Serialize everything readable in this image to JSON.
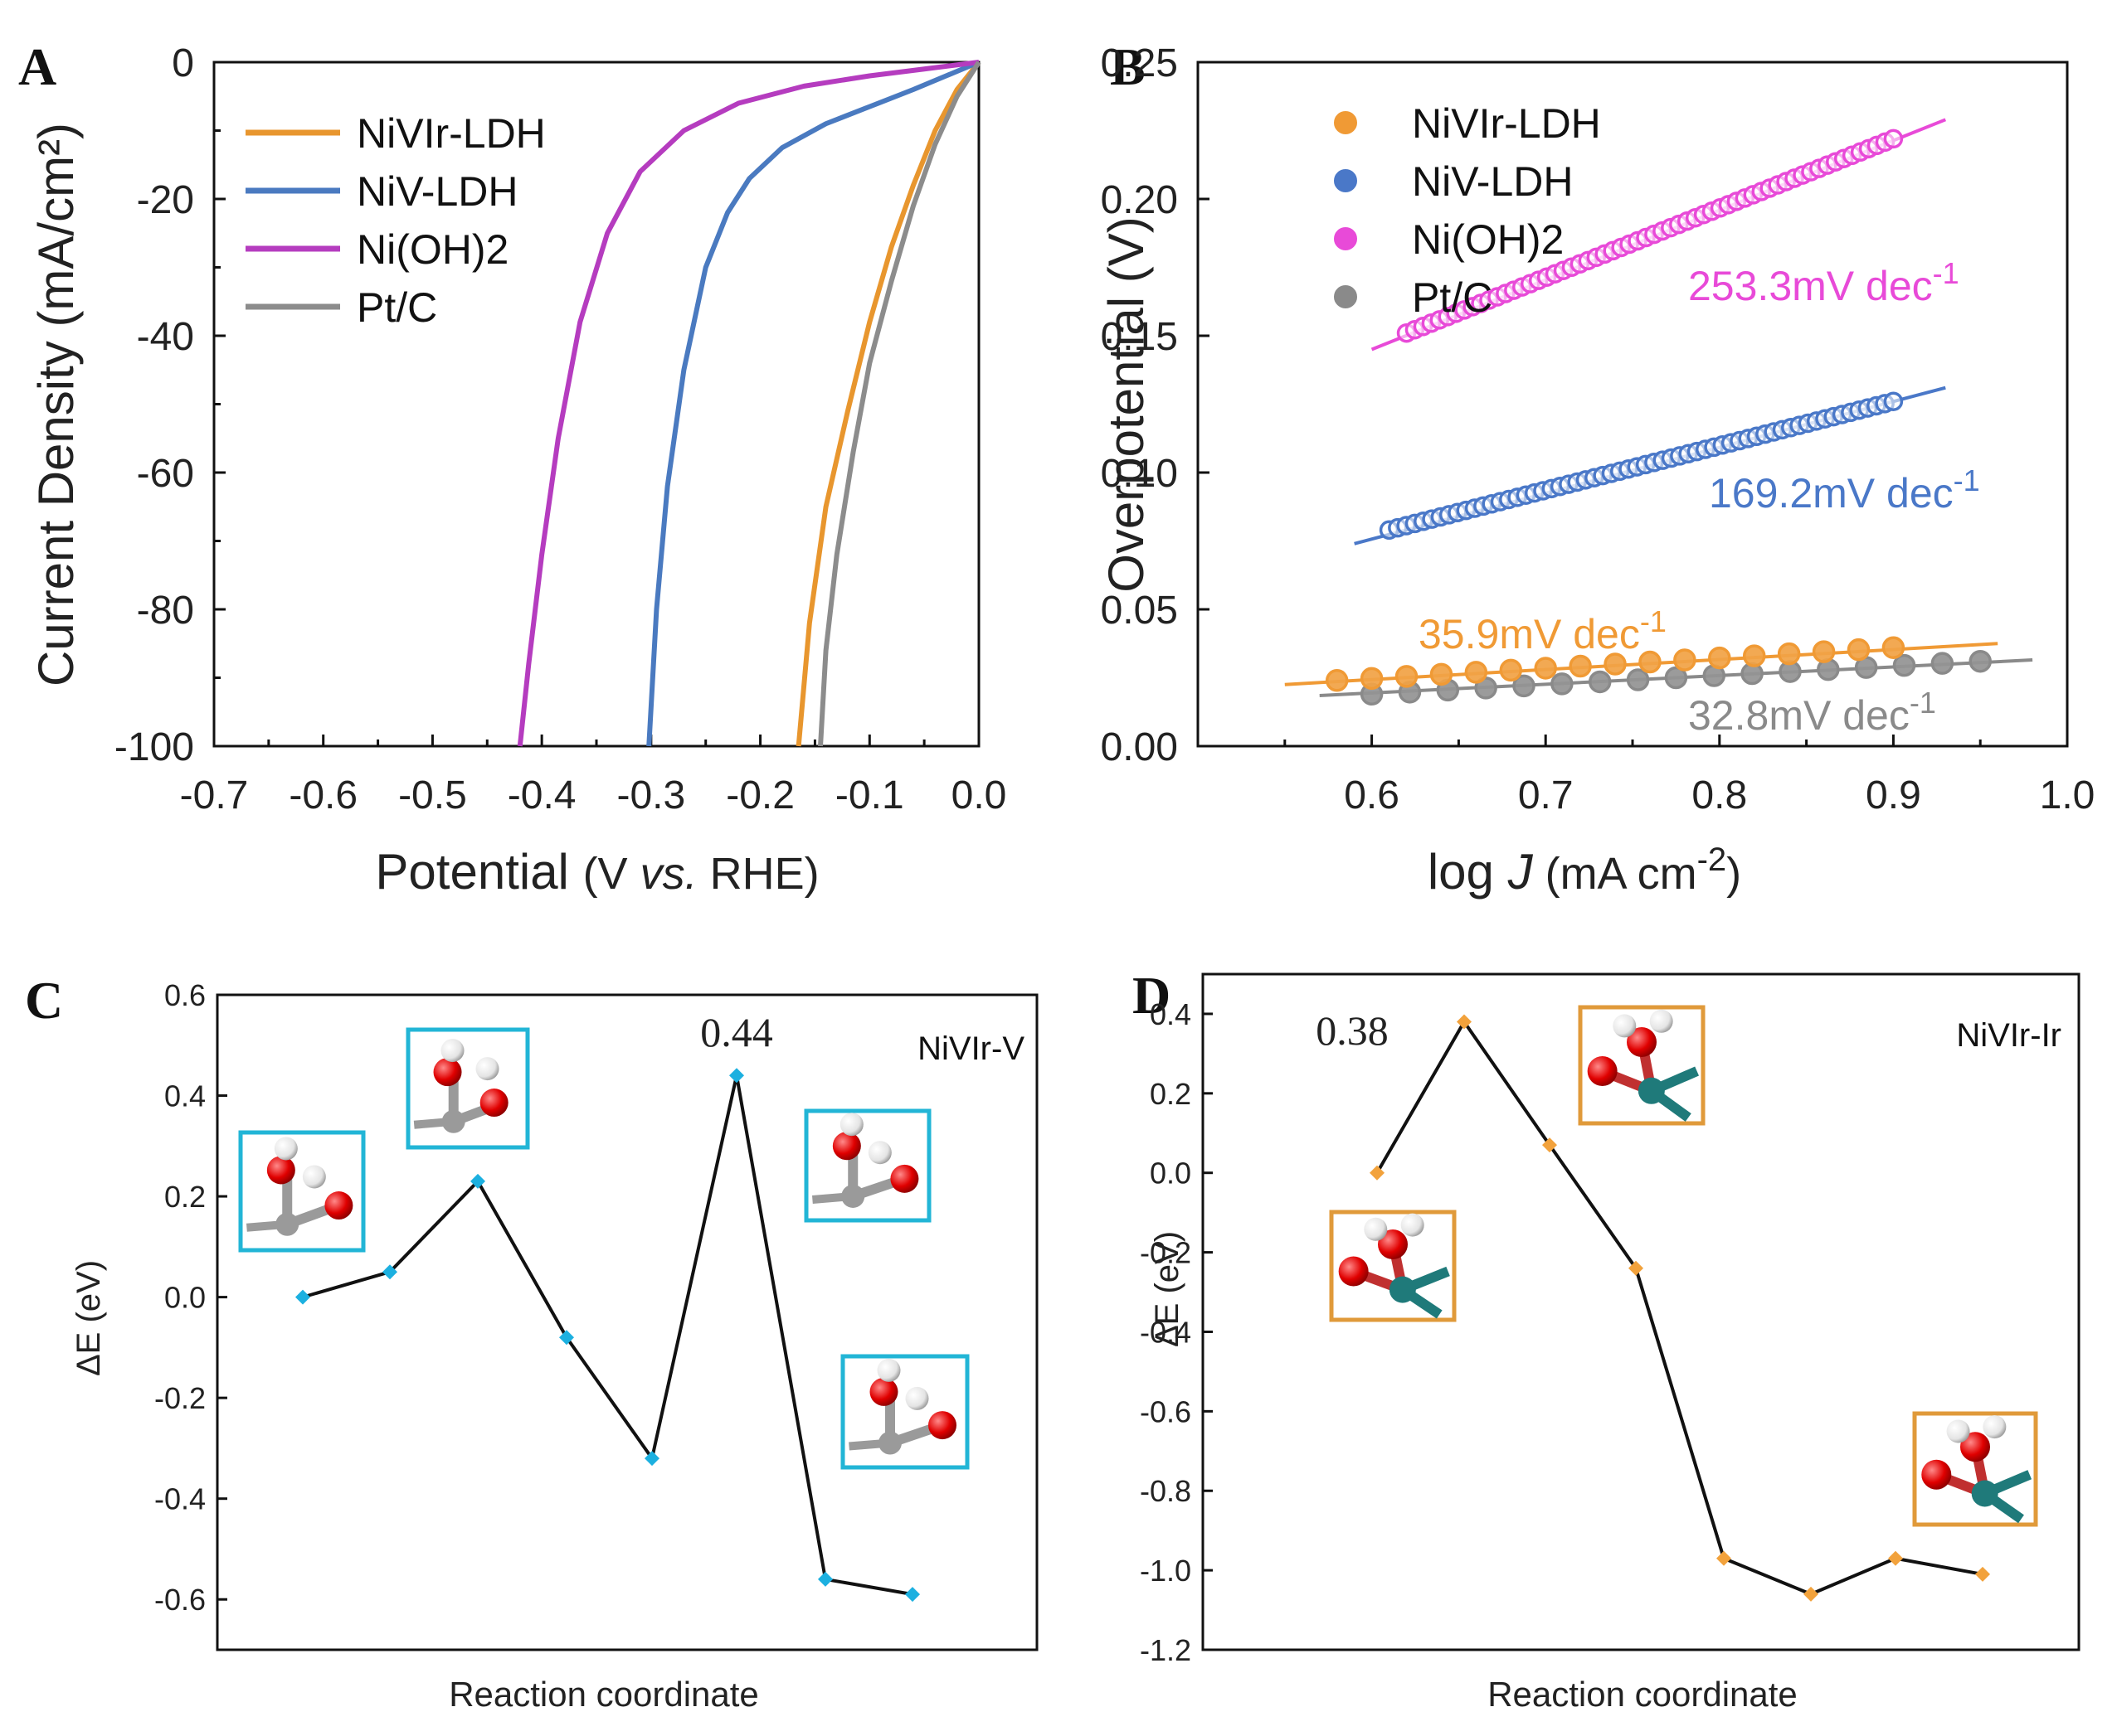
{
  "chart_data": [
    {
      "panel": "A",
      "type": "line",
      "title": "",
      "xlabel_main": "Potential ",
      "xlabel_paren": "(V vs. RHE)",
      "xlabel_parts": [
        "(V ",
        "vs.",
        " RHE)"
      ],
      "ylabel": "Current Density (mA/cm²)",
      "xlim": [
        -0.7,
        0.0
      ],
      "ylim": [
        -100,
        0
      ],
      "xticks": [
        -0.7,
        -0.6,
        -0.5,
        -0.4,
        -0.3,
        -0.2,
        -0.1,
        0.0
      ],
      "xtick_labels": [
        "-0.7",
        "-0.6",
        "-0.5",
        "-0.4",
        "-0.3",
        "-0.2",
        "-0.1",
        "0.0"
      ],
      "yticks": [
        0,
        -20,
        -40,
        -60,
        -80,
        -100
      ],
      "ytick_labels": [
        "0",
        "-20",
        "-40",
        "-60",
        "-80",
        "-100"
      ],
      "legend": "top-left",
      "series": [
        {
          "name": "NiVIr-LDH",
          "color": "#E8962E",
          "x": [
            0.0,
            -0.02,
            -0.04,
            -0.06,
            -0.08,
            -0.1,
            -0.12,
            -0.14,
            -0.155,
            -0.165
          ],
          "y": [
            0,
            -4,
            -10,
            -18,
            -27,
            -38,
            -51,
            -65,
            -82,
            -100
          ]
        },
        {
          "name": "NiV-LDH",
          "color": "#4A7AC0",
          "x": [
            0.0,
            -0.03,
            -0.06,
            -0.1,
            -0.14,
            -0.18,
            -0.21,
            -0.23,
            -0.25,
            -0.27,
            -0.285,
            -0.295,
            -0.302
          ],
          "y": [
            0,
            -2,
            -4,
            -6.5,
            -9,
            -12.5,
            -17,
            -22,
            -30,
            -45,
            -62,
            -80,
            -100
          ]
        },
        {
          "name": "Ni(OH)2",
          "color": "#B53CBF",
          "x": [
            0.0,
            -0.05,
            -0.1,
            -0.16,
            -0.22,
            -0.27,
            -0.31,
            -0.34,
            -0.365,
            -0.385,
            -0.4,
            -0.412,
            -0.42
          ],
          "y": [
            0,
            -1,
            -2,
            -3.5,
            -6,
            -10,
            -16,
            -25,
            -38,
            -55,
            -72,
            -88,
            -100
          ]
        },
        {
          "name": "Pt/C",
          "color": "#8C8C8C",
          "x": [
            0.0,
            -0.02,
            -0.04,
            -0.06,
            -0.08,
            -0.1,
            -0.115,
            -0.13,
            -0.14,
            -0.145
          ],
          "y": [
            0,
            -5,
            -12,
            -21,
            -32,
            -44,
            -57,
            -72,
            -86,
            -100
          ]
        }
      ]
    },
    {
      "panel": "B",
      "type": "scatter",
      "title": "",
      "xlabel_parts": [
        "log ",
        "J",
        " (mA cm",
        "-2",
        ")"
      ],
      "ylabel": "Overpotential (V)",
      "xlim": [
        0.5,
        1.0
      ],
      "ylim": [
        0.0,
        0.25
      ],
      "xticks": [
        0.6,
        0.7,
        0.8,
        0.9,
        1.0
      ],
      "xtick_labels": [
        "0.6",
        "0.7",
        "0.8",
        "0.9",
        "1.0"
      ],
      "yticks": [
        0.0,
        0.05,
        0.1,
        0.15,
        0.2,
        0.25
      ],
      "ytick_labels": [
        "0.00",
        "0.05",
        "0.10",
        "0.15",
        "0.20",
        "0.25"
      ],
      "legend": "top-left",
      "series": [
        {
          "name": "NiVIr-LDH",
          "color": "#F09A35",
          "x_range": [
            0.58,
            0.9
          ],
          "n": 17,
          "y_start": 0.024,
          "y_end": 0.036,
          "fit_x": [
            0.55,
            0.96
          ],
          "fit_y": [
            0.0225,
            0.0375
          ],
          "tafel_base": "35.9mV dec",
          "tafel_sup": "-1"
        },
        {
          "name": "NiV-LDH",
          "color": "#4A78C8",
          "x_range": [
            0.61,
            0.9
          ],
          "n": 60,
          "y_start": 0.079,
          "y_end": 0.126,
          "fit_x": [
            0.59,
            0.93
          ],
          "fit_y": [
            0.074,
            0.131
          ],
          "tafel_base": "169.2mV dec",
          "tafel_sup": "-1"
        },
        {
          "name": "Ni(OH)2",
          "color": "#E84AD8",
          "x_range": [
            0.62,
            0.9
          ],
          "n": 60,
          "y_start": 0.151,
          "y_end": 0.222,
          "fit_x": [
            0.6,
            0.93
          ],
          "fit_y": [
            0.145,
            0.229
          ],
          "tafel_base": "253.3mV dec",
          "tafel_sup": "-1"
        },
        {
          "name": "Pt/C",
          "color": "#8A8A8A",
          "x_range": [
            0.6,
            0.95
          ],
          "n": 17,
          "y_start": 0.019,
          "y_end": 0.031,
          "fit_x": [
            0.57,
            0.98
          ],
          "fit_y": [
            0.0185,
            0.0315
          ],
          "tafel_base": "32.8mV dec",
          "tafel_sup": "-1"
        }
      ]
    },
    {
      "panel": "C",
      "type": "line",
      "title": "NiVIr-V",
      "xlabel": "Reaction coordinate",
      "ylabel": "ΔE (eV)",
      "ylim": [
        -0.7,
        0.6
      ],
      "yticks": [
        0.6,
        0.4,
        0.2,
        0.0,
        -0.2,
        -0.4,
        -0.6
      ],
      "ytick_labels": [
        "0.6",
        "0.4",
        "0.2",
        "0.0",
        "-0.2",
        "-0.4",
        "-0.6"
      ],
      "x": [
        1,
        2,
        3,
        4,
        5,
        6,
        7,
        8
      ],
      "values": [
        0.0,
        0.05,
        0.23,
        -0.08,
        -0.32,
        0.44,
        -0.56,
        -0.59
      ],
      "marker_color": "#1CB0E0",
      "peak_label": "0.44",
      "frame_color": "#22B5D6"
    },
    {
      "panel": "D",
      "type": "line",
      "title": "NiVIr-Ir",
      "xlabel": "Reaction coordinate",
      "ylabel": "ΔE (eV)",
      "ylim": [
        -1.2,
        0.5
      ],
      "yticks": [
        0.4,
        0.2,
        0.0,
        -0.2,
        -0.4,
        -0.6,
        -0.8,
        -1.0,
        -1.2
      ],
      "ytick_labels": [
        "0.4",
        "0.2",
        "0.0",
        "-0.2",
        "-0.4",
        "-0.6",
        "-0.8",
        "-1.0",
        "-1.2"
      ],
      "x": [
        1,
        2,
        3,
        4,
        5,
        6,
        7,
        8
      ],
      "values": [
        0.0,
        0.38,
        0.07,
        -0.24,
        -0.97,
        -1.06,
        -0.97,
        -1.01
      ],
      "marker_color": "#F2A23C",
      "peak_label": "0.38",
      "frame_color": "#E09A3A"
    }
  ],
  "panel_labels": [
    "A",
    "B",
    "C",
    "D"
  ]
}
